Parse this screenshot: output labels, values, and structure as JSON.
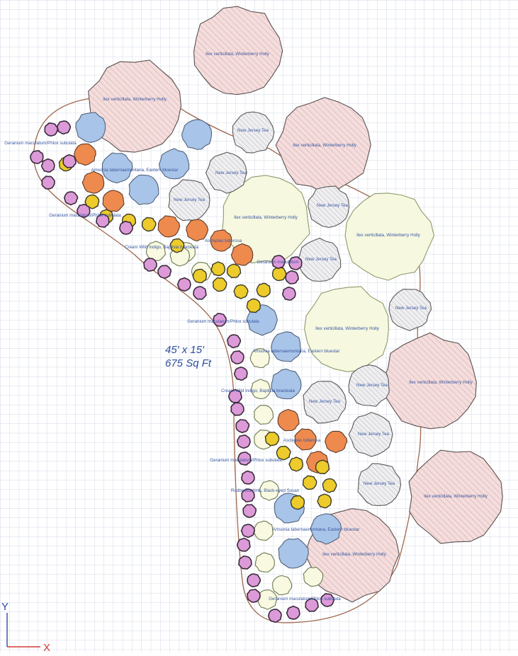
{
  "colors": {
    "grid": "#c6cedf",
    "bed_outline": "#a0674e",
    "holly_red_fill": "#f3dede",
    "holly_red_hatch": "#e4a7a7",
    "holly_green_fill": "#f6f8e0",
    "holly_green_stroke": "#8e9a6c",
    "tea_fill": "#efeff1",
    "tea_hatch": "#b9b9bf",
    "purple": "#dd9ad8",
    "yellow": "#eccb2b",
    "orange": "#ee8a4e",
    "blue": "#a8c4e8",
    "cream": "#f8f9e0",
    "dark_stroke": "#3a3a3a",
    "label": "#3a57a0",
    "axis_y": "#2e4aa2",
    "axis_x": "#d23a3a"
  },
  "area": {
    "dimensions": "45' x 15'",
    "square_feet": "675 Sq Ft"
  },
  "axes": {
    "y": "Y",
    "x": "X"
  },
  "labels": {
    "holly": [
      "Ilex verticillata, Winterberry Holly",
      "Ilex verticillata, Winterberry Holly",
      "Ilex verticillata, Winterberry Holly",
      "Ilex verticillata, Winterberry Holly",
      "Ilex verticillata, Winterberry Holly",
      "Ilex verticillata, Winterberry Holly",
      "Ilex verticillata, Winterberry Holly",
      "Ilex verticillata, Winterberry Holly",
      "Ilex verticillata, Winterberry Holly"
    ],
    "tea": [
      "New Jersey Tea",
      "New Jersey Tea",
      "New Jersey Tea",
      "New Jersey Tea",
      "New Jersey Tea",
      "New Jersey Tea",
      "New Jersey Tea",
      "New Jersey Tea",
      "New Jersey Tea",
      "New Jersey Tea"
    ],
    "perennials": [
      "Geranium maculatum/Phlox subulata",
      "Amsonia tabernaemontana, Eastern bluestar",
      "Geranium maculatum/Phlox subulata",
      "Asclepias tuberosa",
      "Cream Wild Indigo, Baptisia bracteata",
      "Geranium maculatum",
      "Geranium maculatum/Phlox subulata",
      "Amsonia tabernaemontana, Eastern bluestar",
      "Cream Wild Indigo, Baptisia bracteata",
      "Asclepias tuberosa",
      "Geranium maculatum/Phlox subulata",
      "Rudbeckia hirta, Black-eyed Susan",
      "Amsonia tabernaemontana, Eastern bluestar",
      "Geranium maculatum/Phlox subulata"
    ]
  }
}
